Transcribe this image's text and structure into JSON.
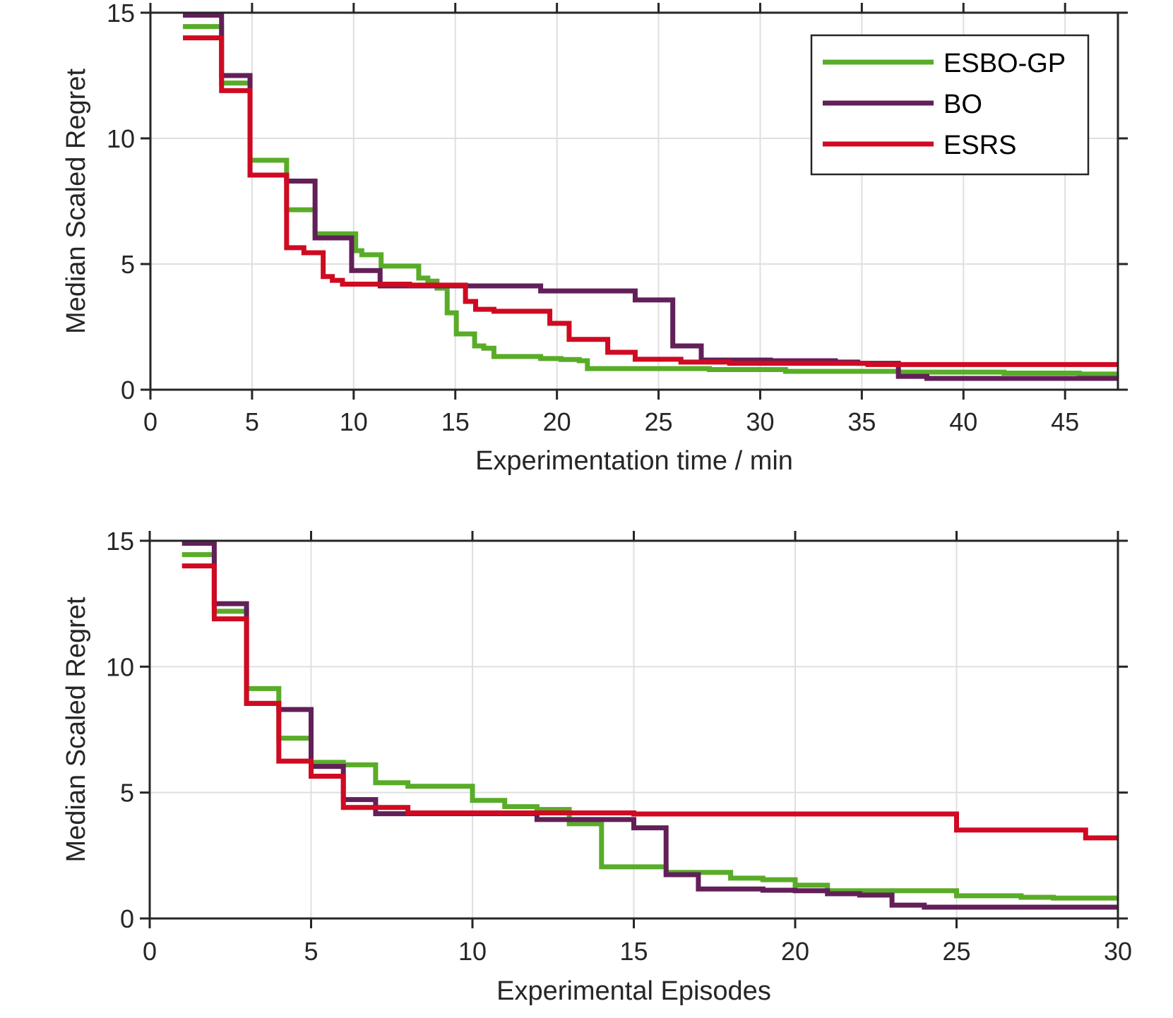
{
  "chart_data": [
    {
      "type": "line",
      "step": true,
      "title": "",
      "xlabel": "Experimentation time / min",
      "ylabel": "Median Scaled Regret",
      "xlim": [
        0,
        47.6
      ],
      "ylim": [
        0,
        15
      ],
      "xticks": [
        0,
        5,
        10,
        15,
        20,
        25,
        30,
        35,
        40,
        45
      ],
      "yticks": [
        0,
        5,
        10,
        15
      ],
      "grid": true,
      "legend": {
        "placement": "top-right",
        "entries": [
          "ESBO-GP",
          "BO",
          "ESRS"
        ]
      },
      "series": [
        {
          "name": "ESBO-GP",
          "color": "#59ac28",
          "points": [
            [
              1.6,
              14.45
            ],
            [
              3.5,
              12.2
            ],
            [
              4.9,
              9.13
            ],
            [
              6.7,
              7.16
            ],
            [
              8.1,
              6.2
            ],
            [
              10.1,
              5.53
            ],
            [
              10.4,
              5.37
            ],
            [
              11.35,
              4.92
            ],
            [
              13.2,
              4.44
            ],
            [
              13.65,
              4.32
            ],
            [
              14.1,
              4.04
            ],
            [
              14.6,
              3.06
            ],
            [
              15.05,
              2.22
            ],
            [
              15.95,
              1.74
            ],
            [
              16.4,
              1.65
            ],
            [
              16.9,
              1.32
            ],
            [
              19.2,
              1.24
            ],
            [
              20.2,
              1.2
            ],
            [
              21.1,
              1.15
            ],
            [
              21.5,
              0.84
            ],
            [
              27.5,
              0.8
            ],
            [
              31.25,
              0.73
            ],
            [
              36.8,
              0.7
            ],
            [
              42.0,
              0.66
            ],
            [
              45.7,
              0.62
            ],
            [
              47.6,
              0.62
            ]
          ]
        },
        {
          "name": "BO",
          "color": "#621f58",
          "points": [
            [
              1.6,
              14.9
            ],
            [
              3.5,
              12.5
            ],
            [
              4.9,
              8.54
            ],
            [
              6.7,
              8.3
            ],
            [
              8.1,
              6.04
            ],
            [
              9.9,
              4.74
            ],
            [
              11.3,
              4.13
            ],
            [
              15.5,
              4.13
            ],
            [
              19.2,
              3.93
            ],
            [
              23.85,
              3.57
            ],
            [
              25.7,
              1.74
            ],
            [
              27.1,
              1.18
            ],
            [
              30.5,
              1.15
            ],
            [
              33.7,
              1.1
            ],
            [
              34.8,
              1.05
            ],
            [
              36.8,
              0.53
            ],
            [
              38.2,
              0.45
            ],
            [
              47.6,
              0.45
            ]
          ]
        },
        {
          "name": "ESRS",
          "color": "#cf0a22",
          "points": [
            [
              1.6,
              14.0
            ],
            [
              3.5,
              11.9
            ],
            [
              4.9,
              8.54
            ],
            [
              6.7,
              5.65
            ],
            [
              7.55,
              5.45
            ],
            [
              8.5,
              4.5
            ],
            [
              8.95,
              4.35
            ],
            [
              9.45,
              4.2
            ],
            [
              12.75,
              4.16
            ],
            [
              15.5,
              3.51
            ],
            [
              16.0,
              3.2
            ],
            [
              16.9,
              3.12
            ],
            [
              19.65,
              2.64
            ],
            [
              20.6,
              2.0
            ],
            [
              22.5,
              1.49
            ],
            [
              23.85,
              1.21
            ],
            [
              26.1,
              1.1
            ],
            [
              28.5,
              1.05
            ],
            [
              35.3,
              1.0
            ],
            [
              47.6,
              1.0
            ]
          ]
        }
      ]
    },
    {
      "type": "line",
      "step": true,
      "title": "",
      "xlabel": "Experimental Episodes",
      "ylabel": "Median Scaled Regret",
      "xlim": [
        0,
        30
      ],
      "ylim": [
        0,
        15
      ],
      "xticks": [
        0,
        5,
        10,
        15,
        20,
        25,
        30
      ],
      "yticks": [
        0,
        5,
        10,
        15
      ],
      "grid": true,
      "legend": null,
      "series": [
        {
          "name": "ESBO-GP",
          "color": "#59ac28",
          "points": [
            [
              1,
              14.45
            ],
            [
              2,
              12.2
            ],
            [
              3,
              9.13
            ],
            [
              4,
              7.16
            ],
            [
              5,
              6.2
            ],
            [
              6,
              6.1
            ],
            [
              7,
              5.39
            ],
            [
              8,
              5.25
            ],
            [
              10,
              4.69
            ],
            [
              11,
              4.44
            ],
            [
              12,
              4.33
            ],
            [
              13,
              3.76
            ],
            [
              14,
              2.05
            ],
            [
              16,
              1.83
            ],
            [
              18,
              1.6
            ],
            [
              19,
              1.54
            ],
            [
              20,
              1.32
            ],
            [
              21,
              1.1
            ],
            [
              25,
              0.9
            ],
            [
              27,
              0.84
            ],
            [
              28,
              0.81
            ],
            [
              30,
              0.81
            ]
          ]
        },
        {
          "name": "BO",
          "color": "#621f58",
          "points": [
            [
              1,
              14.9
            ],
            [
              2,
              12.5
            ],
            [
              3,
              8.54
            ],
            [
              4,
              8.3
            ],
            [
              5,
              6.04
            ],
            [
              6,
              4.72
            ],
            [
              7,
              4.16
            ],
            [
              12,
              3.93
            ],
            [
              15,
              3.6
            ],
            [
              16,
              1.74
            ],
            [
              17,
              1.17
            ],
            [
              19,
              1.12
            ],
            [
              20,
              1.1
            ],
            [
              21,
              0.98
            ],
            [
              22,
              0.93
            ],
            [
              23,
              0.53
            ],
            [
              24,
              0.45
            ],
            [
              30,
              0.45
            ]
          ]
        },
        {
          "name": "ESRS",
          "color": "#cf0a22",
          "points": [
            [
              1,
              14.0
            ],
            [
              2,
              11.9
            ],
            [
              3,
              8.54
            ],
            [
              4,
              6.25
            ],
            [
              5,
              5.65
            ],
            [
              6,
              4.41
            ],
            [
              8,
              4.19
            ],
            [
              15,
              4.15
            ],
            [
              25,
              3.51
            ],
            [
              29,
              3.2
            ],
            [
              30,
              3.2
            ]
          ]
        }
      ]
    }
  ]
}
